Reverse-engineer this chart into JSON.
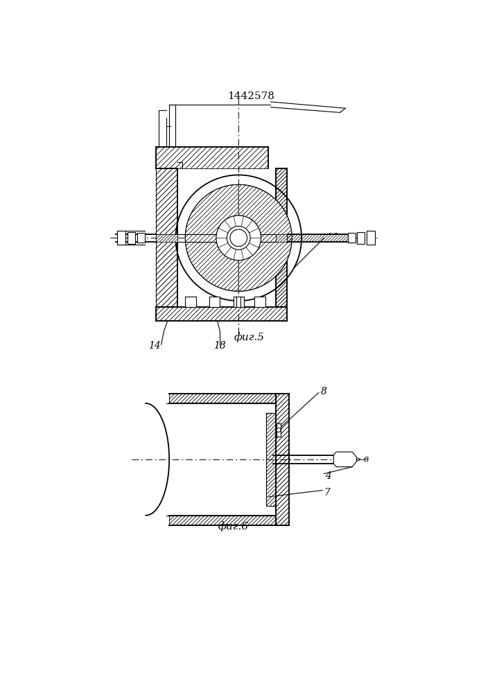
{
  "title": "1442578",
  "fig5_label": "фиг.5",
  "fig6_label": "фиг.6",
  "label_14": "14",
  "label_18": "18",
  "label_16": "16",
  "label_8": "8",
  "label_4": "4",
  "label_7": "7",
  "label_v": "в",
  "bg_color": "#ffffff",
  "line_color": "#000000",
  "lw": 0.8,
  "lw2": 1.3
}
